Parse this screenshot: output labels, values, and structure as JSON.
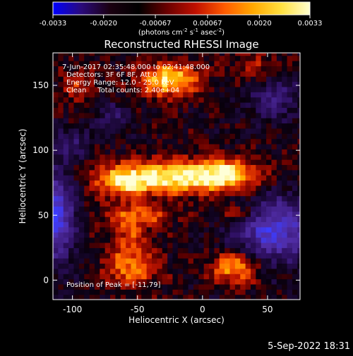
{
  "colorbar": {
    "ticks": [
      "-0.0033",
      "-0.0020",
      "-0.00067",
      "0.00067",
      "0.0020",
      "0.0033"
    ],
    "tick_values": [
      -0.0033,
      -0.002,
      -0.00067,
      0.00067,
      0.002,
      0.0033
    ],
    "units_base": "(photons cm",
    "units_exp1": "-2",
    "units_mid": " s",
    "units_exp2": "-1",
    "units_mid2": " asec",
    "units_exp3": "-2",
    "units_end": ")",
    "range": [
      -0.0033,
      0.0033
    ],
    "colors": [
      "#0000ff",
      "#2a0a7a",
      "#1a0010",
      "#000000",
      "#6a0000",
      "#c01000",
      "#ff5a00",
      "#ffa800",
      "#ffe040",
      "#ffffd0"
    ]
  },
  "chart_data": {
    "type": "heatmap",
    "title": "Reconstructed RHESSI Image",
    "xlabel": "Heliocentric X (arcsec)",
    "ylabel": "Heliocentric Y (arcsec)",
    "xlim": [
      -115,
      75
    ],
    "ylim": [
      -15,
      175
    ],
    "xticks": [
      -100,
      -50,
      0,
      50
    ],
    "yticks": [
      0,
      50,
      100,
      150
    ],
    "pixel_size_arcsec": 4,
    "annotations": {
      "time": "7-Jun-2017 02:35:48.000 to 02:41:48.000",
      "detectors": "Detectors: 3F 6F 8F, Att 0",
      "energy": "Energy Range: 12.0 - 25.0 keV",
      "clean": "Clean     Total counts: 2.40e+04",
      "peak": "Position of Peak = [-11,79]"
    },
    "peak_position": [
      -11,
      79
    ],
    "sources": [
      {
        "x": -18,
        "y": 80,
        "sx": 38,
        "sy": 9,
        "amp": 1.0
      },
      {
        "x": -60,
        "y": 75,
        "sx": 14,
        "sy": 8,
        "amp": 0.55
      },
      {
        "x": 20,
        "y": 82,
        "sx": 14,
        "sy": 8,
        "amp": 0.5
      },
      {
        "x": -26,
        "y": 155,
        "sx": 16,
        "sy": 9,
        "amp": 0.9
      },
      {
        "x": -50,
        "y": 50,
        "sx": 20,
        "sy": 6,
        "amp": 0.5
      },
      {
        "x": 30,
        "y": 52,
        "sx": 14,
        "sy": 6,
        "amp": 0.45
      },
      {
        "x": 25,
        "y": 10,
        "sx": 13,
        "sy": 9,
        "amp": 0.75
      },
      {
        "x": -55,
        "y": 10,
        "sx": 15,
        "sy": 11,
        "amp": 0.6
      },
      {
        "x": -55,
        "y": 35,
        "sx": 10,
        "sy": 10,
        "amp": 0.35
      },
      {
        "x": -95,
        "y": 150,
        "sx": 10,
        "sy": 10,
        "amp": 0.35
      },
      {
        "x": 40,
        "y": 165,
        "sx": 12,
        "sy": 8,
        "amp": 0.3
      }
    ],
    "negative_regions": [
      {
        "x": 55,
        "y": 40,
        "sx": 22,
        "sy": 18,
        "amp": 0.9
      },
      {
        "x": -112,
        "y": 50,
        "sx": 10,
        "sy": 25,
        "amp": 0.9
      },
      {
        "x": 55,
        "y": 140,
        "sx": 14,
        "sy": 12,
        "amp": 0.45
      },
      {
        "x": -100,
        "y": 105,
        "sx": 10,
        "sy": 8,
        "amp": 0.35
      },
      {
        "x": -70,
        "y": 125,
        "sx": 10,
        "sy": 8,
        "amp": 0.35
      }
    ]
  },
  "footer": {
    "date": "5-Sep-2022 18:31"
  }
}
